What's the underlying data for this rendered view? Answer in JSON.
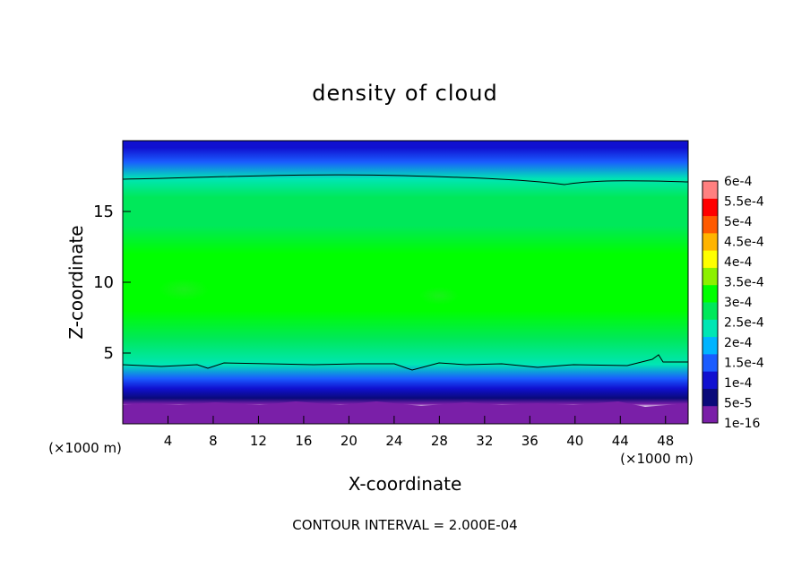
{
  "chart_data": {
    "type": "heatmap",
    "title": "density of cloud",
    "xlabel": "X-coordinate",
    "ylabel": "Z-coordinate",
    "x_unit": "(×1000 m)",
    "y_unit": "(×1000 m)",
    "xlim": [
      0,
      50
    ],
    "ylim": [
      0,
      20
    ],
    "x_ticks": [
      4,
      8,
      12,
      16,
      20,
      24,
      28,
      32,
      36,
      40,
      44,
      48
    ],
    "y_ticks": [
      5,
      10,
      15
    ],
    "colorbar": {
      "labels": [
        "1e-16",
        "5e-5",
        "1e-4",
        "1.5e-4",
        "2e-4",
        "2.5e-4",
        "3e-4",
        "3.5e-4",
        "4e-4",
        "4.5e-4",
        "5e-4",
        "5.5e-4",
        "6e-4"
      ],
      "colors": [
        "#7a1fa8",
        "#0a0a7a",
        "#1010d0",
        "#1a5cff",
        "#00b4ff",
        "#00e6b4",
        "#00e85a",
        "#00ff00",
        "#8cf000",
        "#ffff00",
        "#ffb400",
        "#ff5a00",
        "#ff0000",
        "#ff8080"
      ]
    },
    "contour_levels": [
      0.0002
    ],
    "annotation": "CONTOUR INTERVAL = 2.000E-04",
    "density_profile": [
      {
        "z": 0.0,
        "value": null
      },
      {
        "z": 1.2,
        "value": null
      },
      {
        "z": 1.4,
        "value": 0.0
      },
      {
        "z": 1.8,
        "value": 4e-05
      },
      {
        "z": 2.5,
        "value": 9e-05
      },
      {
        "z": 3.2,
        "value": 0.00013
      },
      {
        "z": 4.2,
        "value": 0.0002
      },
      {
        "z": 6.0,
        "value": 0.00027
      },
      {
        "z": 8.0,
        "value": 0.00031
      },
      {
        "z": 10.0,
        "value": 0.00033
      },
      {
        "z": 12.0,
        "value": 0.00032
      },
      {
        "z": 14.0,
        "value": 0.00029
      },
      {
        "z": 16.0,
        "value": 0.00025
      },
      {
        "z": 17.3,
        "value": 0.0002
      },
      {
        "z": 18.5,
        "value": 0.00015
      },
      {
        "z": 19.5,
        "value": 9e-05
      },
      {
        "z": 20.0,
        "value": 6e-05
      }
    ]
  }
}
